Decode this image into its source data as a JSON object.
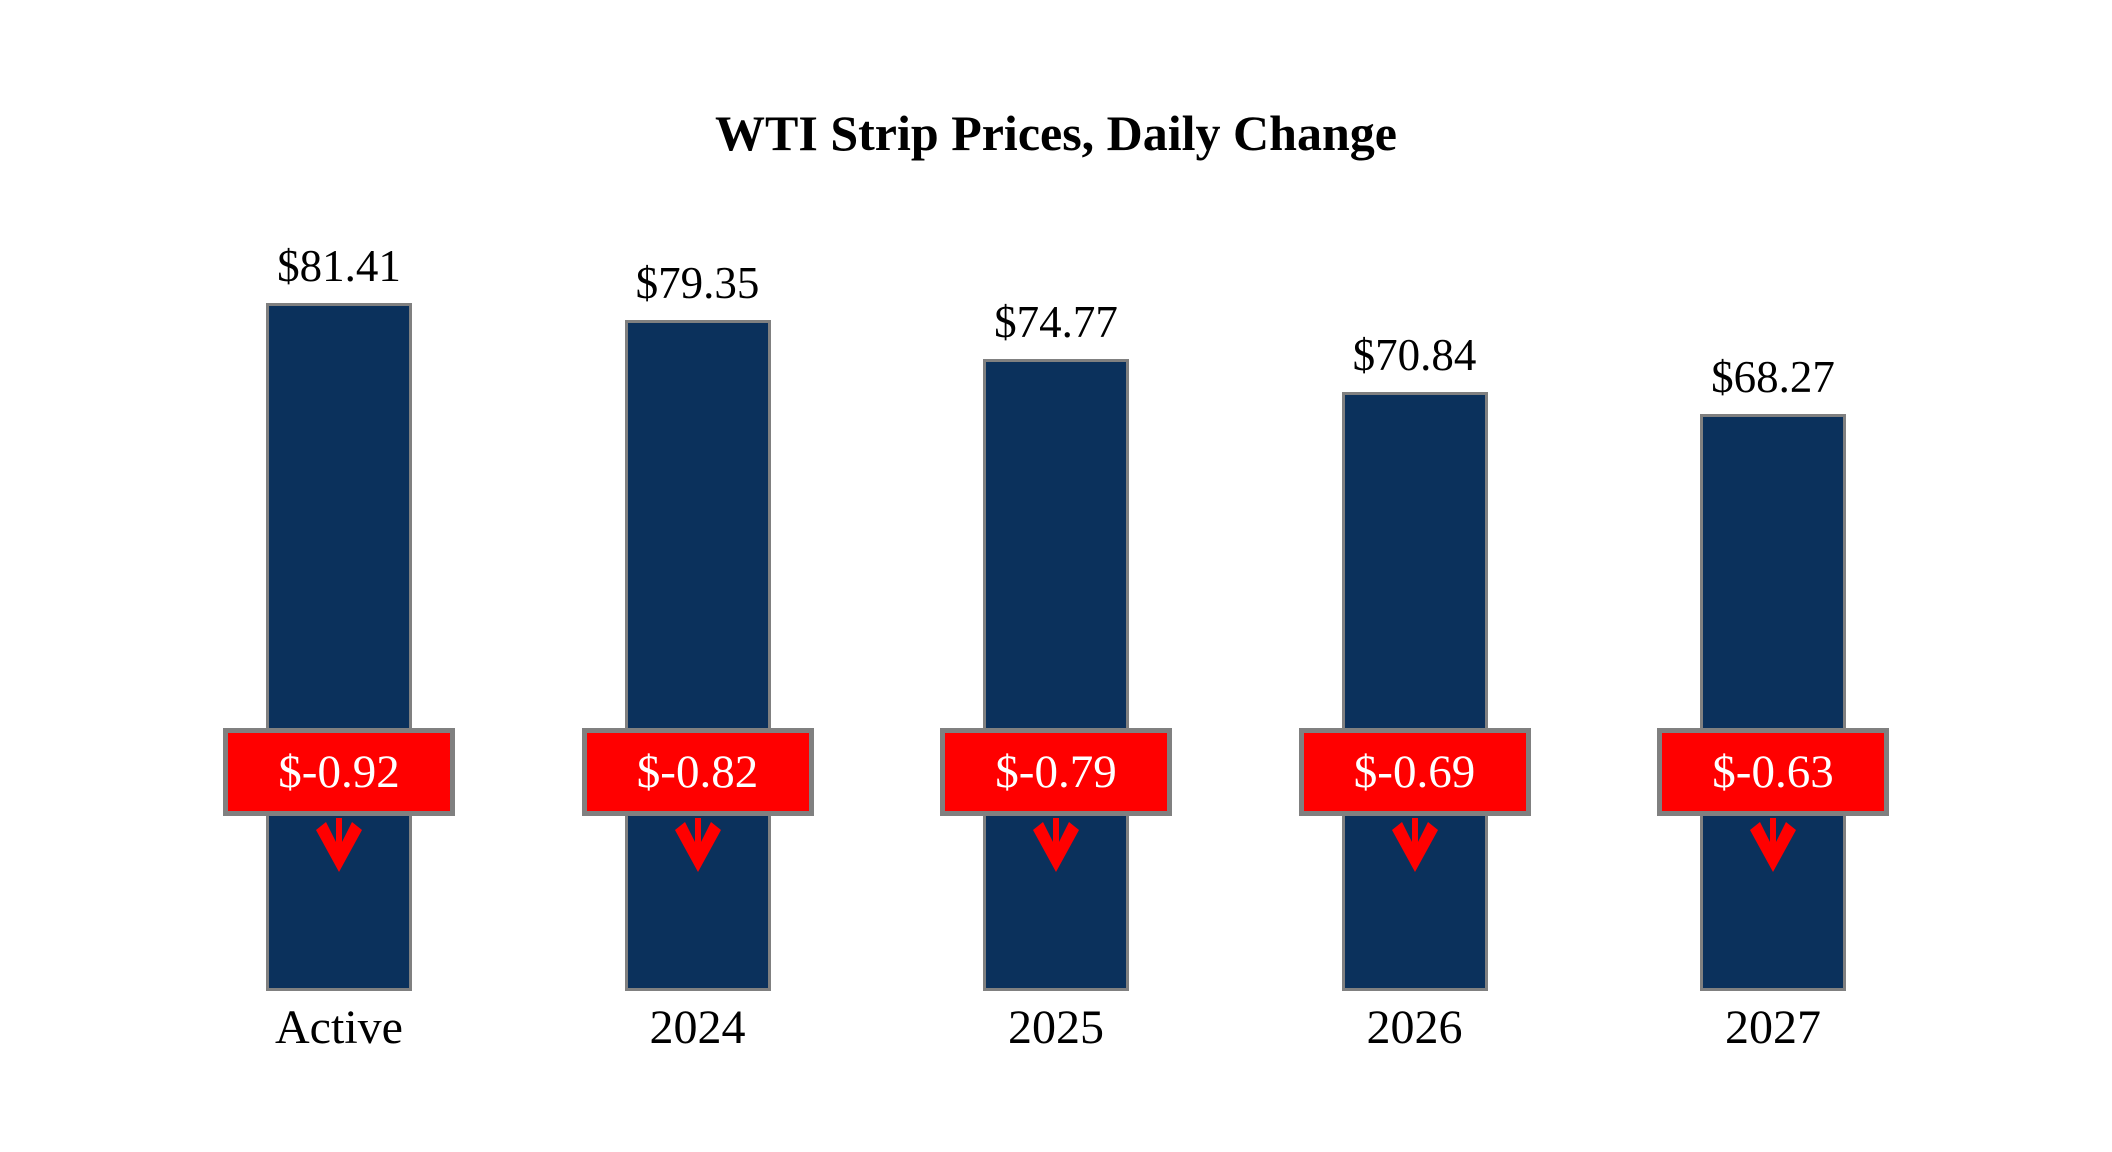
{
  "title": "WTI Strip Prices, Daily Change",
  "colors": {
    "bar_fill": "#0B315C",
    "bar_border": "#808080",
    "badge_fill": "#FF0000",
    "badge_border": "#808080",
    "badge_text": "#FFFFFF",
    "arrow": "#FF0000",
    "title_text": "#000000",
    "label_text": "#000000",
    "background": "#FFFFFF"
  },
  "chart_data": {
    "type": "bar",
    "title": "WTI Strip Prices, Daily Change",
    "categories": [
      "Active",
      "2024",
      "2025",
      "2026",
      "2027"
    ],
    "series": [
      {
        "name": "WTI Strip Price",
        "values": [
          81.41,
          79.35,
          74.77,
          70.84,
          68.27
        ],
        "labels": [
          "$81.41",
          "$79.35",
          "$74.77",
          "$70.84",
          "$68.27"
        ]
      },
      {
        "name": "Daily Change",
        "values": [
          -0.92,
          -0.82,
          -0.79,
          -0.69,
          -0.63
        ],
        "labels": [
          "$-0.92",
          "$-0.82",
          "$-0.79",
          "$-0.69",
          "$-0.63"
        ]
      }
    ],
    "ylabel": "",
    "xlabel": "",
    "ylim": [
      0,
      97
    ],
    "grid": false,
    "legend": "none",
    "annotations": "red badge with daily change value and red down arrow overlaid on each bar"
  }
}
